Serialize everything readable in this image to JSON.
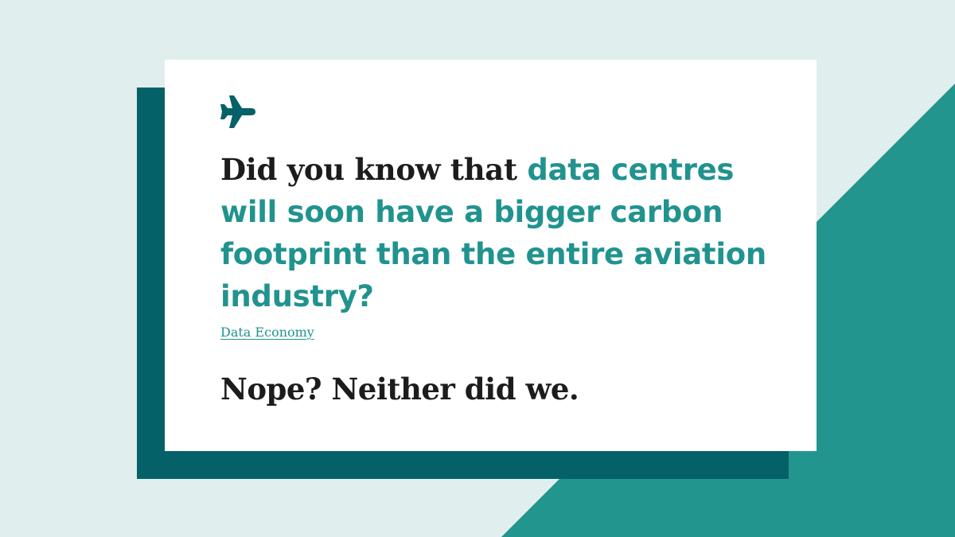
{
  "colors": {
    "background": "#e1eeee",
    "accent_teal": "#21938f",
    "dark_teal": "#046167",
    "card": "#ffffff",
    "text_dark": "#1c1c1c"
  },
  "icon": "airplane-icon",
  "headline": {
    "lead": "Did you know that ",
    "highlight": "data centres will soon have a bigger carbon footprint than the entire aviation industry?"
  },
  "source": {
    "label": "Data Economy"
  },
  "tagline": "Nope? Neither did we."
}
